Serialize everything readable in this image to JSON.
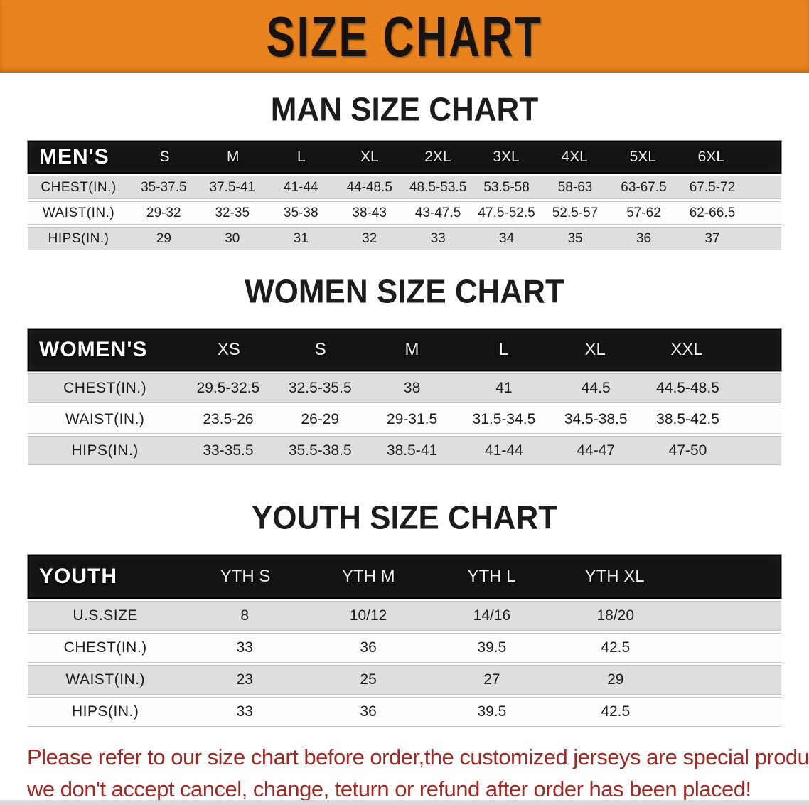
{
  "banner": {
    "title": "SIZE CHART"
  },
  "colors": {
    "banner_bg": "#e9831e",
    "header_bar_bg": "#131313",
    "row_stripe": "#dedede",
    "footer_red": "#a32722"
  },
  "sections": [
    {
      "heading": "MAN SIZE CHART",
      "corner": "MEN'S",
      "columns": [
        "S",
        "M",
        "L",
        "XL",
        "2XL",
        "3XL",
        "4XL",
        "5XL",
        "6XL"
      ],
      "rows": [
        {
          "label": "CHEST(IN.)",
          "values": [
            "35-37.5",
            "37.5-41",
            "41-44",
            "44-48.5",
            "48.5-53.5",
            "53.5-58",
            "58-63",
            "63-67.5",
            "67.5-72"
          ]
        },
        {
          "label": "WAIST(IN.)",
          "values": [
            "29-32",
            "32-35",
            "35-38",
            "38-43",
            "43-47.5",
            "47.5-52.5",
            "52.5-57",
            "57-62",
            "62-66.5"
          ]
        },
        {
          "label": "HIPS(IN.)",
          "values": [
            "29",
            "30",
            "31",
            "32",
            "33",
            "34",
            "35",
            "36",
            "37"
          ]
        }
      ]
    },
    {
      "heading": "WOMEN SIZE CHART",
      "corner": "WOMEN'S",
      "columns": [
        "XS",
        "S",
        "M",
        "L",
        "XL",
        "XXL"
      ],
      "rows": [
        {
          "label": "CHEST(IN.)",
          "values": [
            "29.5-32.5",
            "32.5-35.5",
            "38",
            "41",
            "44.5",
            "44.5-48.5"
          ]
        },
        {
          "label": "WAIST(IN.)",
          "values": [
            "23.5-26",
            "26-29",
            "29-31.5",
            "31.5-34.5",
            "34.5-38.5",
            "38.5-42.5"
          ]
        },
        {
          "label": "HIPS(IN.)",
          "values": [
            "33-35.5",
            "35.5-38.5",
            "38.5-41",
            "41-44",
            "44-47",
            "47-50"
          ]
        }
      ]
    },
    {
      "heading": "YOUTH SIZE CHART",
      "corner": "YOUTH",
      "columns": [
        "YTH S",
        "YTH M",
        "YTH L",
        "YTH XL"
      ],
      "rows": [
        {
          "label": "U.S.SIZE",
          "values": [
            "8",
            "10/12",
            "14/16",
            "18/20"
          ]
        },
        {
          "label": "CHEST(IN.)",
          "values": [
            "33",
            "36",
            "39.5",
            "42.5"
          ]
        },
        {
          "label": "WAIST(IN.)",
          "values": [
            "23",
            "25",
            "27",
            "29"
          ]
        },
        {
          "label": "HIPS(IN.)",
          "values": [
            "33",
            "36",
            "39.5",
            "42.5"
          ]
        }
      ]
    }
  ],
  "footer": {
    "lines": [
      "Please refer to our size chart before order,the customized jerseys are special products,",
      "we don't accept cancel, change, teturn or refund after order has been placed!"
    ]
  }
}
